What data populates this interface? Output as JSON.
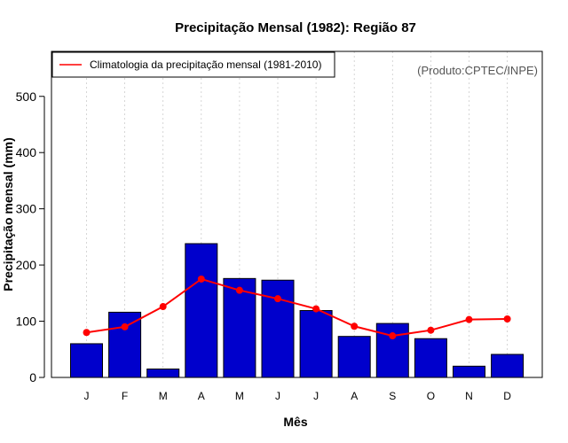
{
  "chart_data": {
    "type": "bar",
    "title": "Precipitação Mensal (1982): Região 87",
    "xlabel": "Mês",
    "ylabel": "Precipitação mensal (mm)",
    "ylim": [
      0,
      580
    ],
    "yticks": [
      0,
      100,
      200,
      300,
      400,
      500
    ],
    "categories": [
      "J",
      "F",
      "M",
      "A",
      "M",
      "J",
      "J",
      "A",
      "S",
      "O",
      "N",
      "D"
    ],
    "series": [
      {
        "name": "Precipitação mensal (1982)",
        "type": "bar",
        "color": "#0000CC",
        "values": [
          60,
          116,
          15,
          238,
          176,
          173,
          119,
          73,
          96,
          69,
          20,
          41
        ]
      },
      {
        "name": "Climatologia da precipitação mensal (1981-2010)",
        "type": "line",
        "color": "#FF0000",
        "values": [
          80,
          90,
          126,
          175,
          155,
          140,
          122,
          91,
          74,
          84,
          103,
          104
        ]
      }
    ],
    "legend": {
      "position": "top-left",
      "entries": [
        "Climatologia da precipitação mensal (1981-2010)"
      ]
    },
    "credit": "(Produto:CPTEC/INPE)",
    "grid": {
      "x": true,
      "y": false
    }
  }
}
